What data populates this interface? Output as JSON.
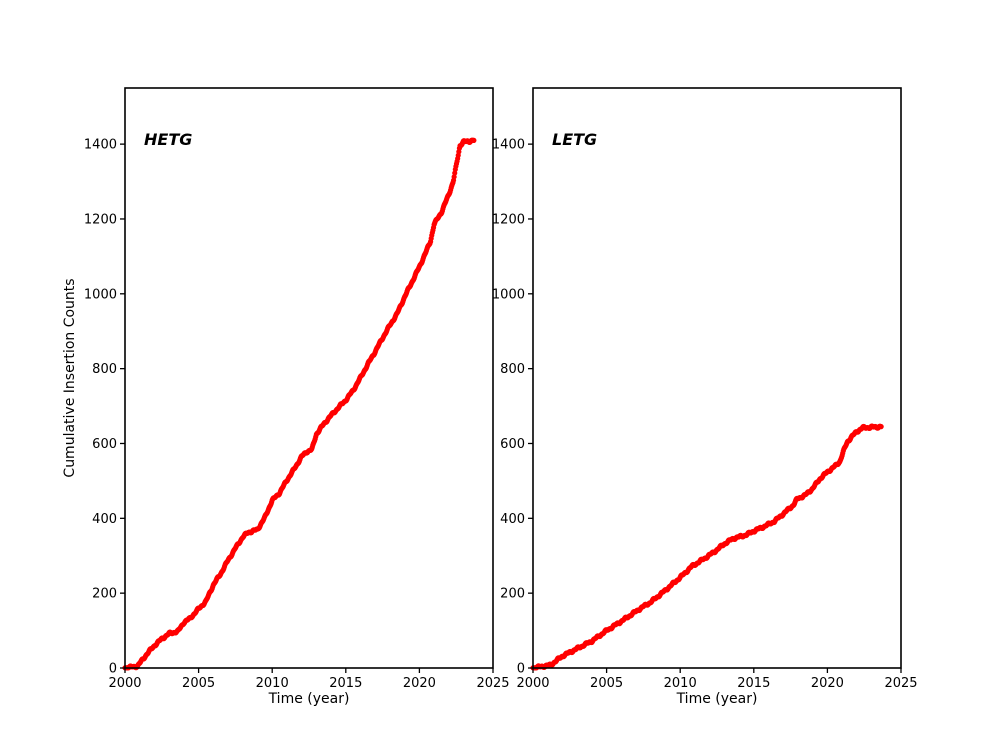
{
  "figure": {
    "background": "#ffffff",
    "marker_color": "#ff0000",
    "axis_color": "#000000"
  },
  "chart_data": [
    {
      "id": "hetg",
      "type": "scatter",
      "annotation": "HETG",
      "xlabel": "Time (year)",
      "ylabel": "Cumulative Insertion Counts",
      "xlim": [
        2000,
        2025
      ],
      "ylim": [
        0,
        1550
      ],
      "xticks": [
        2000,
        2005,
        2010,
        2015,
        2020,
        2025
      ],
      "yticks": [
        0,
        200,
        400,
        600,
        800,
        1000,
        1200,
        1400
      ],
      "legend": "none",
      "grid": false,
      "points": [
        [
          2000.0,
          0
        ],
        [
          2000.85,
          5
        ],
        [
          2001.5,
          38
        ],
        [
          2002.0,
          60
        ],
        [
          2002.5,
          78
        ],
        [
          2003.0,
          92
        ],
        [
          2003.6,
          98
        ],
        [
          2004.0,
          122
        ],
        [
          2004.4,
          132
        ],
        [
          2005.0,
          158
        ],
        [
          2005.5,
          178
        ],
        [
          2006.0,
          222
        ],
        [
          2006.5,
          252
        ],
        [
          2007.0,
          288
        ],
        [
          2007.5,
          320
        ],
        [
          2008.0,
          350
        ],
        [
          2008.35,
          362
        ],
        [
          2009.0,
          370
        ],
        [
          2009.5,
          402
        ],
        [
          2010.0,
          448
        ],
        [
          2010.5,
          468
        ],
        [
          2011.0,
          502
        ],
        [
          2011.5,
          532
        ],
        [
          2012.0,
          565
        ],
        [
          2012.35,
          578
        ],
        [
          2012.7,
          584
        ],
        [
          2013.0,
          625
        ],
        [
          2013.5,
          652
        ],
        [
          2014.0,
          675
        ],
        [
          2014.5,
          696
        ],
        [
          2015.0,
          716
        ],
        [
          2015.5,
          742
        ],
        [
          2016.0,
          776
        ],
        [
          2016.5,
          812
        ],
        [
          2017.0,
          846
        ],
        [
          2017.5,
          882
        ],
        [
          2018.0,
          916
        ],
        [
          2018.5,
          948
        ],
        [
          2019.0,
          992
        ],
        [
          2019.5,
          1032
        ],
        [
          2020.0,
          1072
        ],
        [
          2020.45,
          1112
        ],
        [
          2020.75,
          1140
        ],
        [
          2021.0,
          1186
        ],
        [
          2021.5,
          1218
        ],
        [
          2022.0,
          1266
        ],
        [
          2022.3,
          1300
        ],
        [
          2022.55,
          1352
        ],
        [
          2022.75,
          1396
        ],
        [
          2023.0,
          1406
        ],
        [
          2023.7,
          1410
        ]
      ]
    },
    {
      "id": "letg",
      "type": "scatter",
      "annotation": "LETG",
      "xlabel": "Time (year)",
      "ylabel": "",
      "xlim": [
        2000,
        2025
      ],
      "ylim": [
        0,
        1550
      ],
      "xticks": [
        2000,
        2005,
        2010,
        2015,
        2020,
        2025
      ],
      "yticks": [
        0,
        200,
        400,
        600,
        800,
        1000,
        1200,
        1400
      ],
      "legend": "none",
      "grid": false,
      "points": [
        [
          2000.0,
          0
        ],
        [
          2001.2,
          8
        ],
        [
          2002.0,
          32
        ],
        [
          2002.9,
          50
        ],
        [
          2004.0,
          72
        ],
        [
          2005.0,
          100
        ],
        [
          2006.2,
          130
        ],
        [
          2007.4,
          162
        ],
        [
          2008.0,
          176
        ],
        [
          2009.0,
          208
        ],
        [
          2010.0,
          242
        ],
        [
          2010.8,
          272
        ],
        [
          2011.3,
          284
        ],
        [
          2012.0,
          302
        ],
        [
          2012.5,
          316
        ],
        [
          2013.0,
          332
        ],
        [
          2013.6,
          346
        ],
        [
          2014.5,
          356
        ],
        [
          2015.0,
          366
        ],
        [
          2015.8,
          380
        ],
        [
          2016.4,
          392
        ],
        [
          2017.0,
          412
        ],
        [
          2017.7,
          436
        ],
        [
          2017.95,
          452
        ],
        [
          2018.5,
          462
        ],
        [
          2019.0,
          480
        ],
        [
          2019.5,
          506
        ],
        [
          2020.0,
          524
        ],
        [
          2020.6,
          542
        ],
        [
          2020.85,
          552
        ],
        [
          2021.1,
          580
        ],
        [
          2021.35,
          604
        ],
        [
          2021.6,
          616
        ],
        [
          2022.0,
          632
        ],
        [
          2022.4,
          642
        ],
        [
          2023.65,
          645
        ]
      ]
    }
  ]
}
